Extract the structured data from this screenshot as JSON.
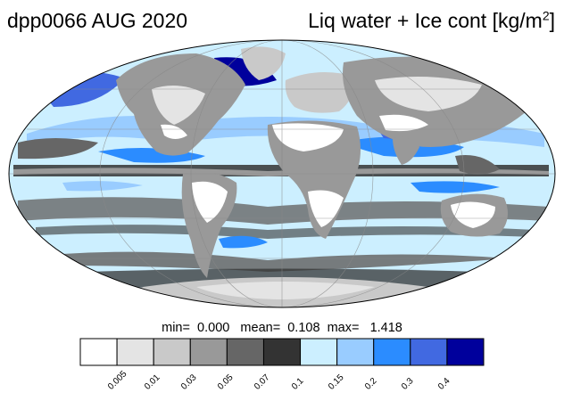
{
  "title": {
    "left": "dpp0066 AUG 2020",
    "right_main": "Liq water + Ice cont [kg/m",
    "right_sup": "2",
    "right_end": "]"
  },
  "stats": {
    "min_label": "min=",
    "min": "0.000",
    "mean_label": "mean=",
    "mean": "0.108",
    "max_label": "max=",
    "max": "1.418"
  },
  "colorbar": {
    "colors": [
      "#ffffff",
      "#e4e4e4",
      "#c9c9c9",
      "#999999",
      "#666666",
      "#333333",
      "#ccefff",
      "#99ccff",
      "#2b8cff",
      "#4169e1",
      "#00009c"
    ],
    "ticks": [
      "0.005",
      "0.01",
      "0.03",
      "0.05",
      "0.07",
      "0.1",
      "0.15",
      "0.2",
      "0.3",
      "0.4"
    ]
  }
}
